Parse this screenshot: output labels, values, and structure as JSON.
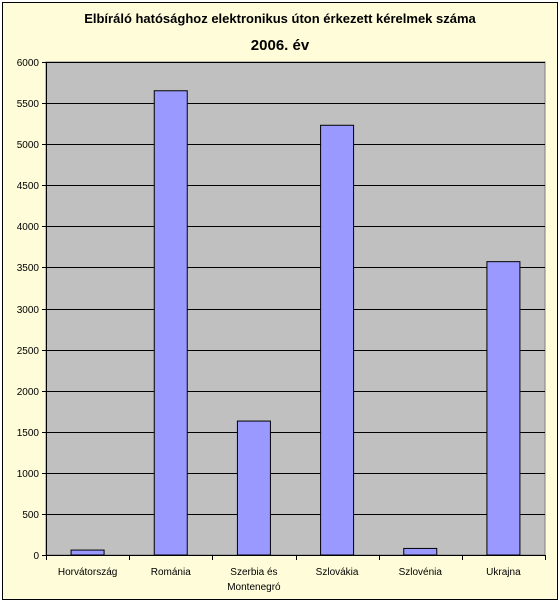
{
  "chart_data": {
    "type": "bar",
    "title": "Elbíráló hatósághoz elektronikus úton érkezett kérelmek száma",
    "subtitle": "2006. év",
    "categories": [
      [
        "Horvátország"
      ],
      [
        "Románia"
      ],
      [
        "Szerbia és",
        "Montenegró"
      ],
      [
        "Szlovákia"
      ],
      [
        "Szlovénia"
      ],
      [
        "Ukrajna"
      ]
    ],
    "values": [
      60,
      5650,
      1630,
      5230,
      80,
      3570
    ],
    "ylim": [
      0,
      6000
    ],
    "yticks": [
      "0",
      "500",
      "1000",
      "1500",
      "2000",
      "2500",
      "3000",
      "3500",
      "4000",
      "4500",
      "5000",
      "5500",
      "6000"
    ],
    "grid": true,
    "legend": "none",
    "colors": {
      "bar": "#9999ff",
      "plot_bg": "#c0c0c0",
      "chart_bg": "#fefcd9"
    }
  }
}
